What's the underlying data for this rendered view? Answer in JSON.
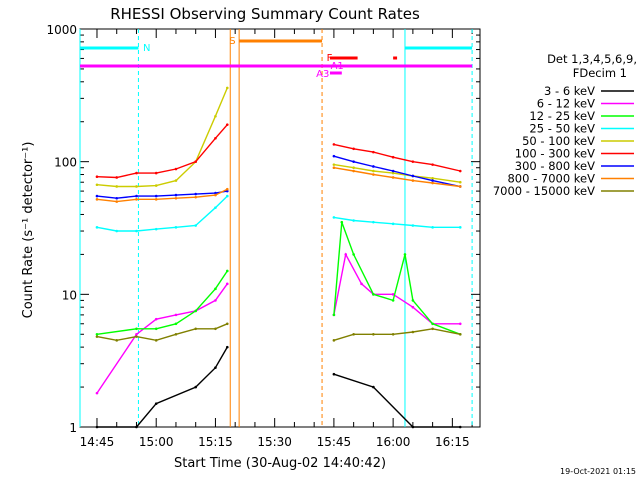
{
  "chart_data": {
    "type": "line",
    "title": "RHESSI Observing Summary Count Rates",
    "xlabel": "Start Time (30-Aug-02 14:40:42)",
    "ylabel": "Count Rate (s⁻¹ detector⁻¹)",
    "yscale": "log",
    "ylim": [
      1,
      1000
    ],
    "xlim": [
      "14:40:42",
      "16:22:00"
    ],
    "x_ticks": [
      "14:45",
      "15:00",
      "15:15",
      "15:30",
      "15:45",
      "16:00",
      "16:15"
    ],
    "y_ticks": [
      "1",
      "10",
      "100",
      "1000"
    ],
    "footer": "19-Oct-2021 01:15",
    "legend": {
      "placement": "right",
      "header": [
        "Det 1,3,4,5,6,9,",
        "FDecim 1"
      ]
    },
    "flags": {
      "N": "N",
      "S": "S",
      "F": "F",
      "A1": "A1",
      "A3": "A3"
    },
    "series": [
      {
        "name": "3 - 6 keV",
        "color": "#000000",
        "points": [
          [
            "14:45",
            1.0
          ],
          [
            "14:55",
            1.0
          ],
          [
            "15:00",
            1.5
          ],
          [
            "15:10",
            2.0
          ],
          [
            "15:15",
            2.8
          ],
          [
            "15:18",
            4.0
          ],
          [
            "15:45",
            2.5
          ],
          [
            "15:55",
            2.0
          ],
          [
            "16:05",
            1.0
          ],
          [
            "16:17",
            1.0
          ]
        ]
      },
      {
        "name": "6 - 12 keV",
        "color": "#ff00ff",
        "points": [
          [
            "14:45",
            1.8
          ],
          [
            "14:55",
            5.0
          ],
          [
            "15:00",
            6.5
          ],
          [
            "15:05",
            7.0
          ],
          [
            "15:10",
            7.5
          ],
          [
            "15:15",
            9.0
          ],
          [
            "15:18",
            12.0
          ],
          [
            "15:45",
            7.0
          ],
          [
            "15:48",
            20.0
          ],
          [
            "15:52",
            12.0
          ],
          [
            "15:55",
            10.0
          ],
          [
            "16:00",
            10.0
          ],
          [
            "16:05",
            8.0
          ],
          [
            "16:10",
            6.0
          ],
          [
            "16:17",
            6.0
          ]
        ]
      },
      {
        "name": "12 - 25 keV",
        "color": "#00ff00",
        "points": [
          [
            "14:45",
            5.0
          ],
          [
            "14:55",
            5.5
          ],
          [
            "15:00",
            5.5
          ],
          [
            "15:05",
            6.0
          ],
          [
            "15:10",
            7.5
          ],
          [
            "15:15",
            11.0
          ],
          [
            "15:18",
            15.0
          ],
          [
            "15:45",
            7.0
          ],
          [
            "15:47",
            35.0
          ],
          [
            "15:50",
            20.0
          ],
          [
            "15:55",
            10.0
          ],
          [
            "16:00",
            9.0
          ],
          [
            "16:03",
            20.0
          ],
          [
            "16:05",
            9.0
          ],
          [
            "16:10",
            6.0
          ],
          [
            "16:17",
            5.0
          ]
        ]
      },
      {
        "name": "25 - 50 keV",
        "color": "#00ffff",
        "points": [
          [
            "14:45",
            32
          ],
          [
            "14:50",
            30
          ],
          [
            "14:55",
            30
          ],
          [
            "15:00",
            31
          ],
          [
            "15:05",
            32
          ],
          [
            "15:10",
            33
          ],
          [
            "15:15",
            45
          ],
          [
            "15:18",
            55
          ],
          [
            "15:45",
            38
          ],
          [
            "15:50",
            36
          ],
          [
            "15:55",
            35
          ],
          [
            "16:00",
            34
          ],
          [
            "16:05",
            33
          ],
          [
            "16:10",
            32
          ],
          [
            "16:17",
            32
          ]
        ]
      },
      {
        "name": "50 - 100 keV",
        "color": "#cccc00",
        "points": [
          [
            "14:45",
            67
          ],
          [
            "14:50",
            65
          ],
          [
            "14:55",
            65
          ],
          [
            "15:00",
            66
          ],
          [
            "15:05",
            72
          ],
          [
            "15:10",
            100
          ],
          [
            "15:15",
            220
          ],
          [
            "15:18",
            360
          ],
          [
            "15:45",
            95
          ],
          [
            "15:50",
            90
          ],
          [
            "15:55",
            85
          ],
          [
            "16:00",
            82
          ],
          [
            "16:05",
            78
          ],
          [
            "16:10",
            75
          ],
          [
            "16:17",
            70
          ]
        ]
      },
      {
        "name": "100 - 300 keV",
        "color": "#ff0000",
        "points": [
          [
            "14:45",
            77
          ],
          [
            "14:50",
            76
          ],
          [
            "14:55",
            82
          ],
          [
            "15:00",
            82
          ],
          [
            "15:05",
            88
          ],
          [
            "15:10",
            100
          ],
          [
            "15:15",
            150
          ],
          [
            "15:18",
            190
          ],
          [
            "15:45",
            135
          ],
          [
            "15:50",
            125
          ],
          [
            "15:55",
            118
          ],
          [
            "16:00",
            108
          ],
          [
            "16:05",
            100
          ],
          [
            "16:10",
            95
          ],
          [
            "16:17",
            85
          ]
        ]
      },
      {
        "name": "300 - 800 keV",
        "color": "#0000ff",
        "points": [
          [
            "14:45",
            55
          ],
          [
            "14:50",
            53
          ],
          [
            "14:55",
            55
          ],
          [
            "15:00",
            55
          ],
          [
            "15:05",
            56
          ],
          [
            "15:10",
            57
          ],
          [
            "15:15",
            58
          ],
          [
            "15:18",
            60
          ],
          [
            "15:45",
            110
          ],
          [
            "15:50",
            100
          ],
          [
            "15:55",
            92
          ],
          [
            "16:00",
            85
          ],
          [
            "16:05",
            78
          ],
          [
            "16:10",
            72
          ],
          [
            "16:17",
            65
          ]
        ]
      },
      {
        "name": "800 - 7000 keV",
        "color": "#ff8000",
        "points": [
          [
            "14:45",
            52
          ],
          [
            "14:50",
            50
          ],
          [
            "14:55",
            52
          ],
          [
            "15:00",
            52
          ],
          [
            "15:05",
            53
          ],
          [
            "15:10",
            54
          ],
          [
            "15:15",
            56
          ],
          [
            "15:18",
            62
          ],
          [
            "15:45",
            90
          ],
          [
            "15:50",
            85
          ],
          [
            "15:55",
            80
          ],
          [
            "16:00",
            76
          ],
          [
            "16:05",
            72
          ],
          [
            "16:10",
            69
          ],
          [
            "16:17",
            65
          ]
        ]
      },
      {
        "name": "7000 - 15000 keV",
        "color": "#808000",
        "points": [
          [
            "14:45",
            4.8
          ],
          [
            "14:50",
            4.5
          ],
          [
            "14:55",
            4.8
          ],
          [
            "15:00",
            4.5
          ],
          [
            "15:05",
            5.0
          ],
          [
            "15:10",
            5.5
          ],
          [
            "15:15",
            5.5
          ],
          [
            "15:18",
            6.0
          ],
          [
            "15:45",
            4.5
          ],
          [
            "15:50",
            5.0
          ],
          [
            "15:55",
            5.0
          ],
          [
            "16:00",
            5.0
          ],
          [
            "16:05",
            5.2
          ],
          [
            "16:10",
            5.5
          ],
          [
            "16:17",
            5.0
          ]
        ]
      }
    ]
  }
}
